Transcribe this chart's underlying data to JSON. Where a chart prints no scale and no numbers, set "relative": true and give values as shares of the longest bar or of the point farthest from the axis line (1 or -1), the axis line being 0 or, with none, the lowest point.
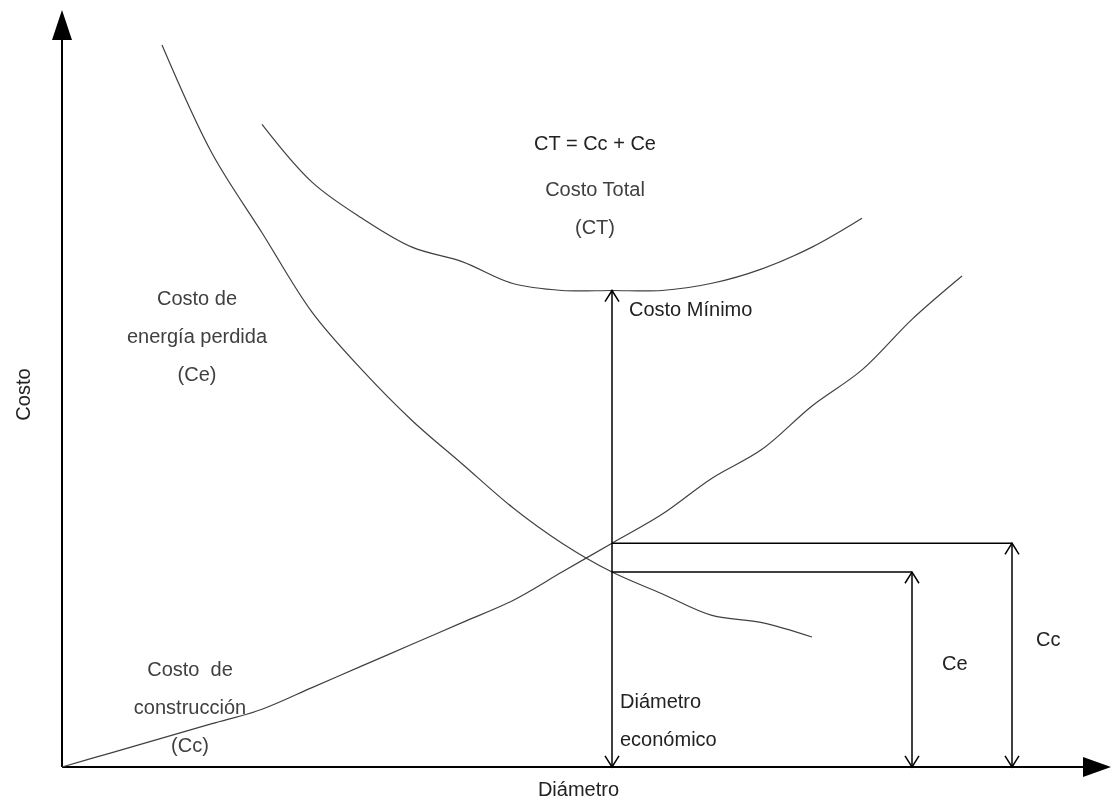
{
  "chart_data": {
    "type": "line",
    "relative": true,
    "xlabel": "Diámetro",
    "ylabel": "Costo",
    "categories": [
      null,
      null,
      null,
      null,
      null,
      null,
      null,
      null,
      null,
      null,
      null,
      null,
      null,
      null,
      null,
      null,
      null,
      null,
      null,
      null
    ],
    "marker": "none",
    "line_style": "solid",
    "series": [
      {
        "name": "Costo  de\nconstrucción\n(Cc)",
        "color": "#404040",
        "values": [
          0,
          0.02,
          0.04,
          0.06,
          0.08,
          0.11,
          0.14,
          0.17,
          0.2,
          0.23,
          0.27,
          0.31,
          0.35,
          0.4,
          0.44,
          0.5,
          0.55,
          0.62,
          0.68,
          null
        ]
      },
      {
        "name": "Costo de\nenergía perdida\n(Ce)",
        "color": "#404040",
        "values": [
          null,
          null,
          1,
          0.85,
          0.74,
          0.63,
          0.55,
          0.48,
          0.42,
          0.36,
          0.31,
          0.27,
          0.24,
          0.21,
          0.2,
          0.18,
          null,
          null,
          null,
          null
        ]
      },
      {
        "name": "Costo Total\n(CT)",
        "color": "#404040",
        "values": [
          null,
          null,
          null,
          null,
          0.89,
          0.81,
          0.76,
          0.72,
          0.7,
          0.67,
          0.66,
          0.66,
          0.66,
          0.67,
          0.69,
          0.72,
          0.76,
          null,
          null,
          null
        ]
      }
    ],
    "annotations": [
      "CT = Cc + Ce",
      "Costo Mínimo",
      "Diámetro\neconómico",
      "Ce",
      "Cc"
    ]
  }
}
